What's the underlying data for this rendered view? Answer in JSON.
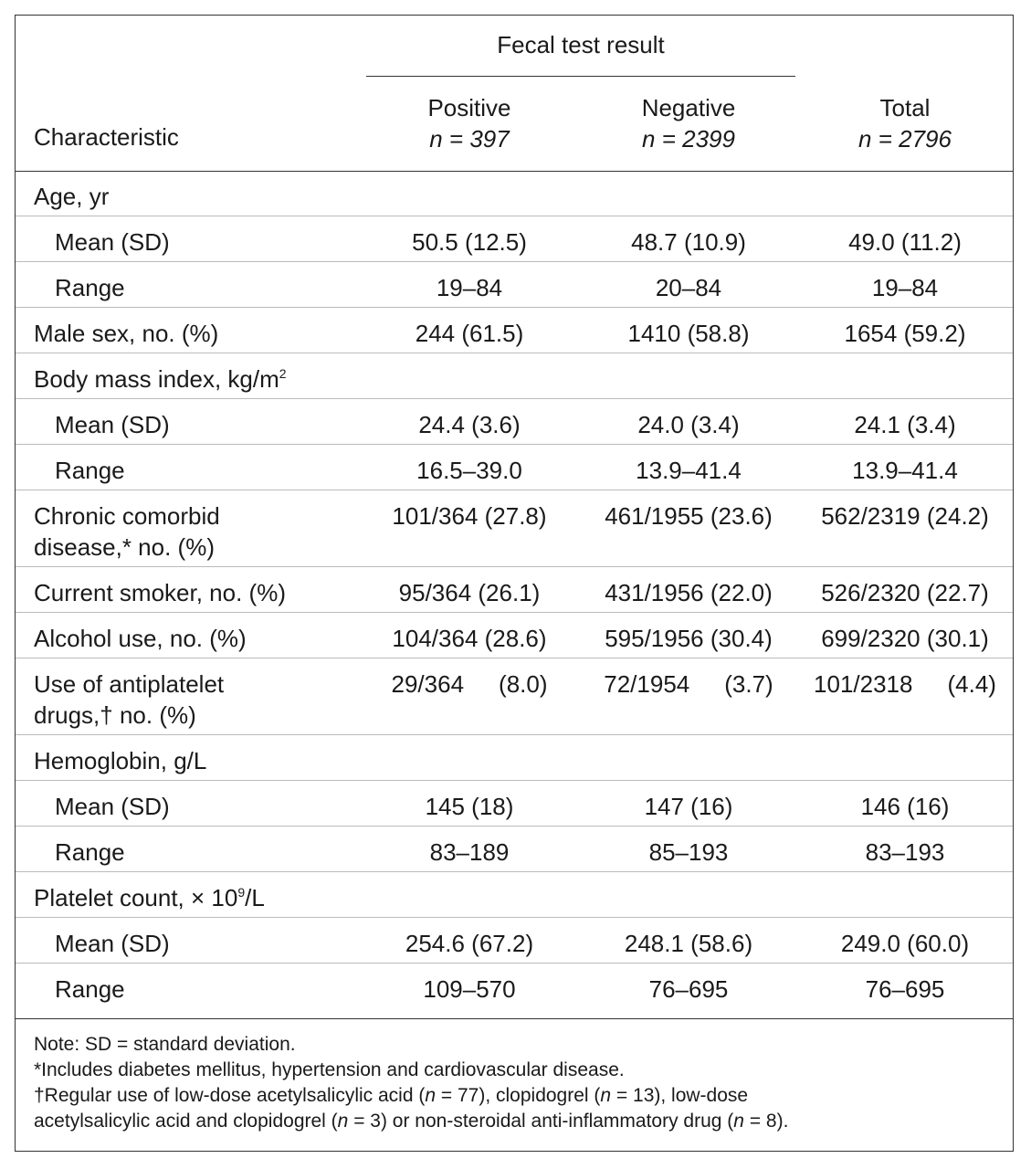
{
  "header": {
    "group_label": "Fecal test result",
    "characteristic": "Characteristic",
    "columns": [
      {
        "label": "Positive",
        "n": "n = 397"
      },
      {
        "label": "Negative",
        "n": "n = 2399"
      },
      {
        "label": "Total",
        "n": "n = 2796"
      }
    ]
  },
  "rows": [
    {
      "label": "Age, yr",
      "sub": false,
      "values": [
        "",
        "",
        ""
      ]
    },
    {
      "label": "Mean (SD)",
      "sub": true,
      "values": [
        "50.5 (12.5)",
        "48.7 (10.9)",
        "49.0 (11.2)"
      ]
    },
    {
      "label": "Range",
      "sub": true,
      "values": [
        "19–84",
        "20–84",
        "19–84"
      ]
    },
    {
      "label": "Male sex, no. (%)",
      "sub": false,
      "values": [
        "244 (61.5)",
        "1410 (58.8)",
        "1654 (59.2)"
      ]
    },
    {
      "label": "Body mass index, kg/m",
      "sup": "2",
      "sub": false,
      "values": [
        "",
        "",
        ""
      ]
    },
    {
      "label": "Mean (SD)",
      "sub": true,
      "values": [
        "24.4 (3.6)",
        "24.0 (3.4)",
        "24.1 (3.4)"
      ]
    },
    {
      "label": "Range",
      "sub": true,
      "values": [
        "16.5–39.0",
        "13.9–41.4",
        "13.9–41.4"
      ]
    },
    {
      "label": "Chronic comorbid",
      "label2": "disease,* no. (%)",
      "sub": false,
      "values": [
        "101/364 (27.8)",
        "461/1955 (23.6)",
        "562/2319 (24.2)"
      ]
    },
    {
      "label": "Current smoker, no. (%)",
      "sub": false,
      "values": [
        "95/364 (26.1)",
        "431/1956 (22.0)",
        "526/2320 (22.7)"
      ]
    },
    {
      "label": "Alcohol use, no. (%)",
      "sub": false,
      "values": [
        "104/364 (28.6)",
        "595/1956 (30.4)",
        "699/2320 (30.1)"
      ]
    },
    {
      "label": "Use of antiplatelet",
      "label2": "drugs,† no. (%)",
      "sub": false,
      "split": true,
      "values": [
        [
          "29/364",
          "(8.0)"
        ],
        [
          "72/1954",
          "(3.7)"
        ],
        [
          "101/2318",
          "(4.4)"
        ]
      ]
    },
    {
      "label": "Hemoglobin, g/L",
      "sub": false,
      "values": [
        "",
        "",
        ""
      ]
    },
    {
      "label": "Mean (SD)",
      "sub": true,
      "values": [
        "145 (18)",
        "147 (16)",
        "146 (16)"
      ]
    },
    {
      "label": "Range",
      "sub": true,
      "values": [
        "83–189",
        "85–193",
        "83–193"
      ]
    },
    {
      "label": "Platelet count, × 10",
      "sup": "9",
      "label_tail": "/L",
      "sub": false,
      "values": [
        "",
        "",
        ""
      ]
    },
    {
      "label": "Mean (SD)",
      "sub": true,
      "values": [
        "254.6 (67.2)",
        "248.1 (58.6)",
        "249.0 (60.0)"
      ]
    },
    {
      "label": "Range",
      "sub": true,
      "values": [
        "109–570",
        "76–695",
        "76–695"
      ]
    }
  ],
  "notes": {
    "n1": "Note: SD = standard deviation.",
    "n2": "*Includes diabetes mellitus, hypertension and cardiovascular disease.",
    "n3_a": "†Regular use of low-dose acetylsalicylic acid (",
    "n3_n1": "n",
    "n3_b": " = 77), clopidogrel (",
    "n3_n2": "n",
    "n3_c": " = 13), low-dose",
    "n4_a": "acetylsalicylic acid and clopidogrel (",
    "n4_n1": "n",
    "n4_b": " = 3) or non-steroidal anti-inflammatory drug (",
    "n4_n2": "n",
    "n4_c": " = 8)."
  }
}
